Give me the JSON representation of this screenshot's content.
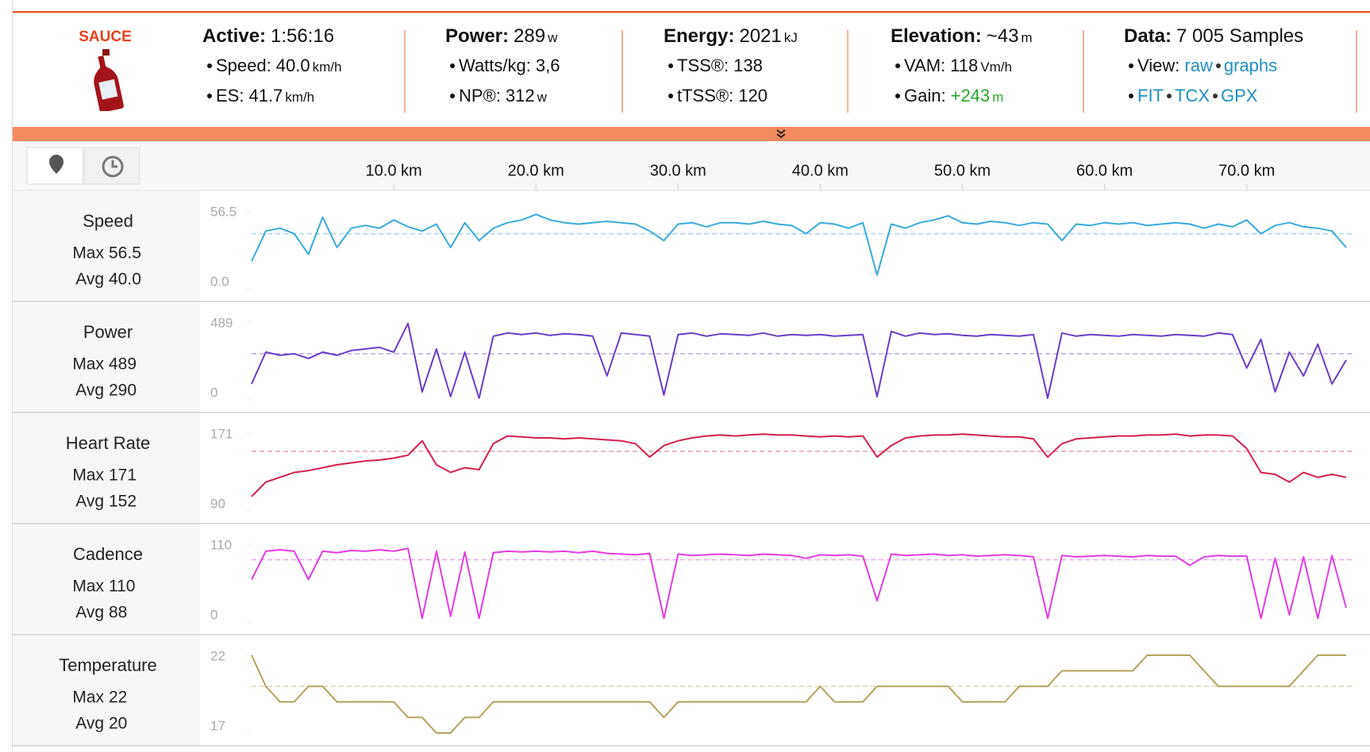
{
  "header": {
    "logo": "SAUCE",
    "stats": [
      {
        "label": "Active:",
        "value": "1:56:16",
        "rows": [
          {
            "label": "Speed:",
            "value": "40.0",
            "unit": "km/h"
          },
          {
            "label": "ES:",
            "value": "41.7",
            "unit": "km/h"
          }
        ]
      },
      {
        "label": "Power:",
        "value": "289",
        "unit": "w",
        "rows": [
          {
            "label": "Watts/kg:",
            "value": "3,6"
          },
          {
            "label": "NP®:",
            "value": "312",
            "unit": "w"
          }
        ]
      },
      {
        "label": "Energy:",
        "value": "2021",
        "unit": "kJ",
        "rows": [
          {
            "label": "TSS®:",
            "value": "138"
          },
          {
            "label": "tTSS®:",
            "value": "120"
          }
        ]
      },
      {
        "label": "Elevation:",
        "value": "~43",
        "unit": "m",
        "rows": [
          {
            "label": "VAM:",
            "value": "118",
            "unit": "Vm/h"
          },
          {
            "label": "Gain:",
            "value": "+243",
            "unit": "m",
            "color": "#2ea52e"
          }
        ]
      },
      {
        "label": "Data:",
        "value": "7 005 Samples",
        "rows": [
          {
            "label": "View:",
            "links": [
              "raw",
              "graphs"
            ]
          },
          {
            "links": [
              "FIT",
              "TCX",
              "GPX"
            ]
          }
        ]
      }
    ]
  },
  "chart_data": {
    "type": "line",
    "x": [
      0,
      1,
      2,
      3,
      4,
      5,
      6,
      7,
      8,
      9,
      10,
      11,
      12,
      13,
      14,
      15,
      16,
      17,
      18,
      19,
      20,
      21,
      22,
      23,
      24,
      25,
      26,
      27,
      28,
      29,
      30,
      31,
      32,
      33,
      34,
      35,
      36,
      37,
      38,
      39,
      40,
      41,
      42,
      43,
      44,
      45,
      46,
      47,
      48,
      49,
      50,
      51,
      52,
      53,
      54,
      55,
      56,
      57,
      58,
      59,
      60,
      61,
      62,
      63,
      64,
      65,
      66,
      67,
      68,
      69,
      70,
      71,
      72,
      73,
      74,
      75,
      76,
      77
    ],
    "xlim": [
      0,
      77.5
    ],
    "xticks": [
      {
        "value": 10,
        "label": "10.0 km"
      },
      {
        "value": 20,
        "label": "20.0 km"
      },
      {
        "value": 30,
        "label": "30.0 km"
      },
      {
        "value": 40,
        "label": "40.0 km"
      },
      {
        "value": 50,
        "label": "50.0 km"
      },
      {
        "value": 60,
        "label": "60.0 km"
      },
      {
        "value": 70,
        "label": "70.0 km"
      }
    ],
    "panels": [
      {
        "name": "Speed",
        "color": "#3aa9dc",
        "ylim": [
          0,
          56.5
        ],
        "yticks": [
          {
            "value": 0,
            "label": "0.0"
          },
          56.5
        ],
        "max_label": "Max",
        "max": 56.5,
        "avg_label": "Avg",
        "avg": {
          "value": 40,
          "label": "40.0"
        },
        "values": [
          20,
          42,
          44,
          40,
          25,
          52,
          30,
          44,
          46,
          44,
          50,
          45,
          42,
          47,
          30,
          48,
          35,
          44,
          48,
          50,
          54,
          50,
          48,
          47,
          48,
          49,
          48,
          47,
          42,
          35,
          47,
          48,
          45,
          48,
          48,
          47,
          49,
          47,
          46,
          40,
          48,
          47,
          44,
          48,
          10,
          47,
          44,
          48,
          50,
          53,
          48,
          47,
          49,
          48,
          46,
          48,
          47,
          35,
          47,
          46,
          48,
          47,
          48,
          46,
          47,
          48,
          47,
          44,
          47,
          45,
          50,
          40,
          46,
          48,
          45,
          44,
          42,
          30
        ]
      },
      {
        "name": "Power",
        "color": "#6a3dc8",
        "ylim": [
          0,
          489
        ],
        "yticks": [
          0,
          489
        ],
        "max_label": "Max",
        "max": 489,
        "avg_label": "Avg",
        "avg": 290,
        "values": [
          100,
          300,
          280,
          290,
          260,
          300,
          280,
          310,
          320,
          330,
          300,
          480,
          50,
          320,
          20,
          300,
          10,
          400,
          420,
          410,
          420,
          405,
          415,
          410,
          400,
          150,
          420,
          410,
          400,
          30,
          410,
          420,
          400,
          415,
          410,
          405,
          420,
          400,
          410,
          405,
          410,
          400,
          405,
          410,
          20,
          430,
          400,
          420,
          410,
          415,
          405,
          400,
          410,
          405,
          400,
          410,
          10,
          420,
          400,
          410,
          405,
          400,
          410,
          405,
          400,
          410,
          405,
          400,
          420,
          410,
          200,
          380,
          50,
          300,
          150,
          350,
          100,
          250
        ]
      },
      {
        "name": "Heart Rate",
        "color": "#d41f4c",
        "ylim": [
          90,
          171
        ],
        "yticks": [
          90,
          171
        ],
        "max_label": "Max",
        "max": 171,
        "avg_label": "Avg",
        "avg": 152,
        "values": [
          105,
          120,
          125,
          130,
          132,
          135,
          138,
          140,
          142,
          143,
          145,
          148,
          163,
          138,
          130,
          135,
          133,
          160,
          168,
          167,
          166,
          166,
          165,
          166,
          165,
          164,
          163,
          160,
          146,
          158,
          163,
          166,
          168,
          169,
          168,
          169,
          170,
          169,
          169,
          168,
          167,
          168,
          167,
          168,
          146,
          158,
          166,
          168,
          169,
          169,
          170,
          169,
          168,
          167,
          167,
          165,
          146,
          160,
          165,
          166,
          167,
          168,
          168,
          169,
          169,
          170,
          168,
          169,
          169,
          168,
          155,
          130,
          128,
          120,
          130,
          125,
          128,
          125
        ]
      },
      {
        "name": "Cadence",
        "color": "#e33ce3",
        "ylim": [
          0,
          110
        ],
        "yticks": [
          0,
          110
        ],
        "max_label": "Max",
        "max": 110,
        "avg_label": "Avg",
        "avg": 88,
        "values": [
          60,
          100,
          102,
          100,
          60,
          100,
          98,
          101,
          100,
          102,
          100,
          104,
          5,
          100,
          8,
          99,
          5,
          98,
          100,
          99,
          100,
          99,
          100,
          98,
          100,
          97,
          96,
          95,
          97,
          5,
          96,
          94,
          95,
          96,
          95,
          94,
          96,
          95,
          94,
          90,
          95,
          94,
          95,
          93,
          30,
          96,
          94,
          95,
          96,
          94,
          95,
          93,
          94,
          95,
          94,
          92,
          5,
          94,
          92,
          93,
          94,
          93,
          92,
          94,
          93,
          93,
          80,
          92,
          94,
          93,
          93,
          5,
          90,
          10,
          92,
          5,
          94,
          20
        ]
      },
      {
        "name": "Temperature",
        "color": "#b3a25e",
        "ylim": [
          17,
          22
        ],
        "yticks": [
          17,
          22
        ],
        "max_label": "Max",
        "max": 22,
        "avg_label": "Avg",
        "avg": 20,
        "values": [
          22,
          20,
          19,
          19,
          20,
          20,
          19,
          19,
          19,
          19,
          19,
          18,
          18,
          17,
          17,
          18,
          18,
          19,
          19,
          19,
          19,
          19,
          19,
          19,
          19,
          19,
          19,
          19,
          19,
          18,
          19,
          19,
          19,
          19,
          19,
          19,
          19,
          19,
          19,
          19,
          20,
          19,
          19,
          19,
          20,
          20,
          20,
          20,
          20,
          20,
          19,
          19,
          19,
          19,
          20,
          20,
          20,
          21,
          21,
          21,
          21,
          21,
          21,
          22,
          22,
          22,
          22,
          21,
          20,
          20,
          20,
          20,
          20,
          20,
          21,
          22,
          22,
          22
        ]
      }
    ]
  }
}
